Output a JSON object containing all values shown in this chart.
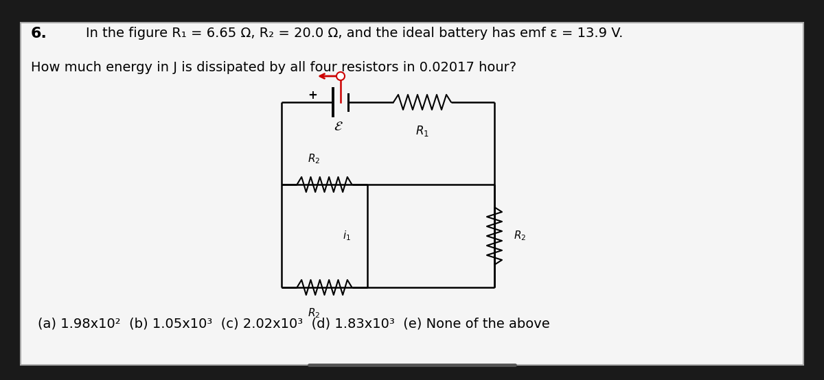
{
  "background_outer": "#1a1a1a",
  "background_inner": "#f5f5f5",
  "title_number": "6.",
  "title_text": "In the figure R₁ = 6.65 Ω, R₂ = 20.0 Ω, and the ideal battery has emf ε = 13.9 V.",
  "subtitle_text": "How much energy in J is dissipated by all four resistors in 0.02017 hour?",
  "answer_text": "(a) 1.98x10²  (b) 1.05x10³  (c) 2.02x10³  (d) 1.83x10³  (e) None of the above",
  "text_color": "#000000",
  "font_size_title": 14,
  "font_size_answer": 14,
  "line_color": "#000000",
  "red_color": "#cc0000"
}
